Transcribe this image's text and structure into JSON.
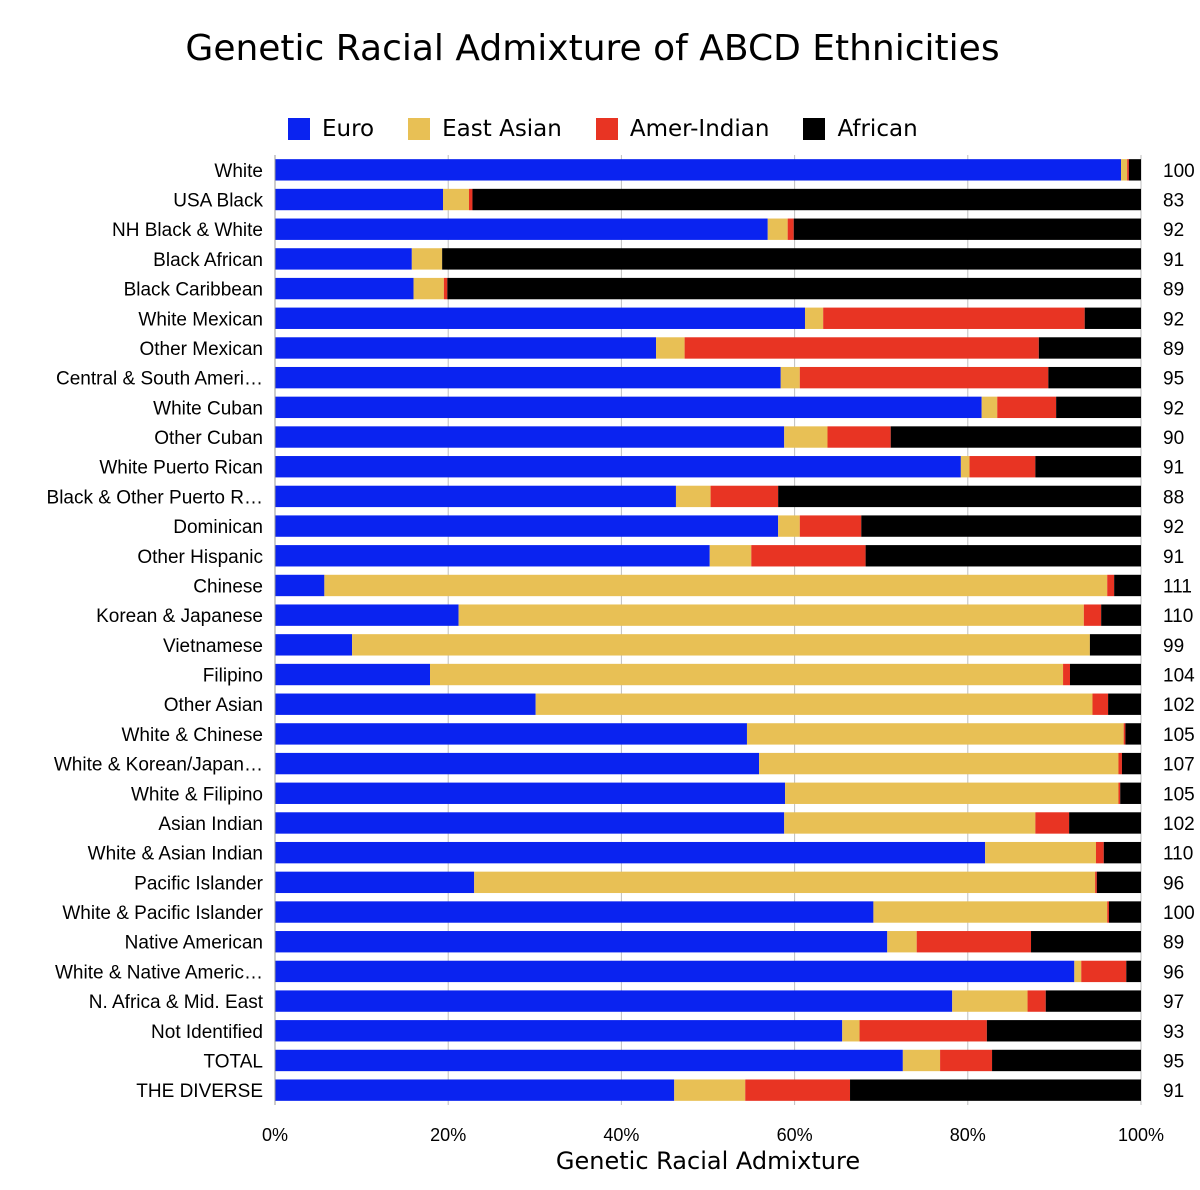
{
  "chart_data": {
    "type": "bar",
    "orientation": "horizontal",
    "stacked": true,
    "title": "Genetic Racial Admixture of ABCD Ethnicities",
    "xlabel": "Genetic Racial Admixture",
    "ylabel": "",
    "xlim": [
      0,
      100
    ],
    "x_ticks": [
      "0%",
      "20%",
      "40%",
      "60%",
      "80%",
      "100%"
    ],
    "grid": true,
    "legend_position": "top",
    "categories": [
      "White",
      "USA Black",
      "NH Black & White",
      "Black African",
      "Black Caribbean",
      "White Mexican",
      "Other Mexican",
      "Central & South Ameri…",
      "White Cuban",
      "Other Cuban",
      "White Puerto Rican",
      "Black & Other Puerto R…",
      "Dominican",
      "Other Hispanic",
      "Chinese",
      "Korean & Japanese",
      "Vietnamese",
      "Filipino",
      "Other Asian",
      "White & Chinese",
      "White & Korean/Japan…",
      "White & Filipino",
      "Asian Indian",
      "White & Asian Indian",
      "Pacific Islander",
      "White & Pacific Islander",
      "Native American",
      "White & Native Americ…",
      "N. Africa & Mid. East",
      "Not Identified",
      "TOTAL",
      "THE DIVERSE"
    ],
    "series": [
      {
        "name": "Euro",
        "color": "#0a23f0",
        "values": [
          97.7,
          19.4,
          56.9,
          15.8,
          16.0,
          61.2,
          44.0,
          58.4,
          81.6,
          58.8,
          79.2,
          46.3,
          58.1,
          50.2,
          5.7,
          21.2,
          8.9,
          17.9,
          30.1,
          54.5,
          55.9,
          58.9,
          58.8,
          82.0,
          23.0,
          69.1,
          70.7,
          92.3,
          78.2,
          65.5,
          72.5,
          46.1
        ]
      },
      {
        "name": "East Asian",
        "color": "#e8c055",
        "values": [
          0.7,
          3.0,
          2.3,
          3.5,
          3.5,
          2.1,
          3.3,
          2.2,
          1.8,
          5.0,
          1.0,
          4.0,
          2.5,
          4.8,
          90.4,
          72.2,
          85.2,
          73.1,
          64.3,
          43.5,
          41.5,
          38.5,
          29.0,
          12.8,
          71.7,
          27.0,
          3.4,
          0.8,
          8.7,
          2.0,
          4.3,
          8.2
        ]
      },
      {
        "name": "Amer-Indian",
        "color": "#e83423",
        "values": [
          0.2,
          0.4,
          0.7,
          0.0,
          0.4,
          30.2,
          40.9,
          28.7,
          6.8,
          7.3,
          7.6,
          7.8,
          7.1,
          13.2,
          0.8,
          2.0,
          0.0,
          0.8,
          1.8,
          0.2,
          0.4,
          0.2,
          3.9,
          0.9,
          0.2,
          0.2,
          13.2,
          5.2,
          2.1,
          14.7,
          6.0,
          12.1
        ]
      },
      {
        "name": "African",
        "color": "#000000",
        "values": [
          1.4,
          77.2,
          40.1,
          80.7,
          80.1,
          6.5,
          11.8,
          10.7,
          9.8,
          28.9,
          12.2,
          41.9,
          32.3,
          31.8,
          3.1,
          4.6,
          5.9,
          8.2,
          3.8,
          1.8,
          2.2,
          2.4,
          8.3,
          4.3,
          5.1,
          3.7,
          12.7,
          1.7,
          11.0,
          17.8,
          17.2,
          33.6
        ]
      }
    ],
    "right_labels": [
      "100",
      "83",
      "92",
      "91",
      "89",
      "92",
      "89",
      "95",
      "92",
      "90",
      "91",
      "88",
      "92",
      "91",
      "111",
      "110",
      "99",
      "104",
      "102",
      "105",
      "107",
      "105",
      "102",
      "110",
      "96",
      "100",
      "89",
      "96",
      "97",
      "93",
      "95",
      "91"
    ]
  }
}
